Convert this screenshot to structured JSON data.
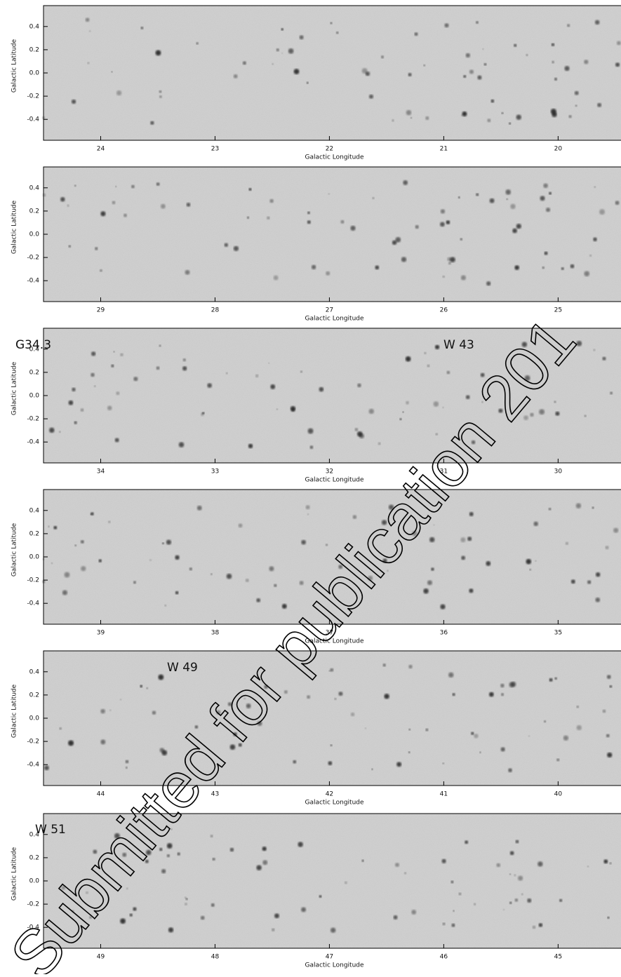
{
  "chart_data": [
    {
      "type": "image",
      "xlabel": "Galactic Longitude",
      "ylabel": "Galactic Latitude",
      "xlim": [
        24.5,
        19.45
      ],
      "xticks": [
        24,
        23,
        22,
        21,
        20
      ],
      "ylim": [
        -0.58,
        0.58
      ],
      "yticks": [
        0.4,
        0.2,
        {
          "value": 0,
          "label": "0.0"
        },
        -0.2,
        -0.4
      ],
      "annotations": []
    },
    {
      "type": "image",
      "xlabel": "Galactic Longitude",
      "ylabel": "Galactic Latitude",
      "xlim": [
        29.5,
        24.45
      ],
      "xticks": [
        29,
        28,
        27,
        26,
        25
      ],
      "ylim": [
        -0.58,
        0.58
      ],
      "yticks": [
        0.4,
        0.2,
        {
          "value": 0,
          "label": "0.0"
        },
        -0.2,
        -0.4
      ],
      "annotations": []
    },
    {
      "type": "image",
      "xlabel": "Galactic Longitude",
      "ylabel": "Galactic Latitude",
      "xlim": [
        34.5,
        29.45
      ],
      "xticks": [
        34,
        33,
        32,
        31,
        30
      ],
      "ylim": [
        -0.58,
        0.58
      ],
      "yticks": [
        0.4,
        0.2,
        {
          "value": 0,
          "label": "0.0"
        },
        -0.2,
        -0.4
      ],
      "annotations": [
        "G34.3",
        "W 43"
      ]
    },
    {
      "type": "image",
      "xlabel": "Galactic Longitude",
      "ylabel": "Galactic Latitude",
      "xlim": [
        39.5,
        34.45
      ],
      "xticks": [
        39,
        38,
        37,
        36,
        35
      ],
      "ylim": [
        -0.58,
        0.58
      ],
      "yticks": [
        0.4,
        0.2,
        {
          "value": 0,
          "label": "0.0"
        },
        -0.2,
        -0.4
      ],
      "annotations": []
    },
    {
      "type": "image",
      "xlabel": "Galactic Longitude",
      "ylabel": "Galactic Latitude",
      "xlim": [
        44.5,
        39.45
      ],
      "xticks": [
        44,
        43,
        42,
        41,
        40
      ],
      "ylim": [
        -0.58,
        0.58
      ],
      "yticks": [
        0.4,
        0.2,
        {
          "value": 0,
          "label": "0.0"
        },
        -0.2,
        -0.4
      ],
      "annotations": [
        "W 49"
      ]
    },
    {
      "type": "image",
      "xlabel": "Galactic Longitude",
      "ylabel": "Galactic Latitude",
      "xlim": [
        49.5,
        44.45
      ],
      "xticks": [
        49,
        48,
        47,
        46,
        45
      ],
      "ylim": [
        -0.58,
        0.58
      ],
      "yticks": [
        0.4,
        0.2,
        {
          "value": 0,
          "label": "0.0"
        },
        -0.2,
        -0.4
      ],
      "annotations": [
        "W 51"
      ]
    }
  ],
  "watermark": "Submitted for publication 201"
}
